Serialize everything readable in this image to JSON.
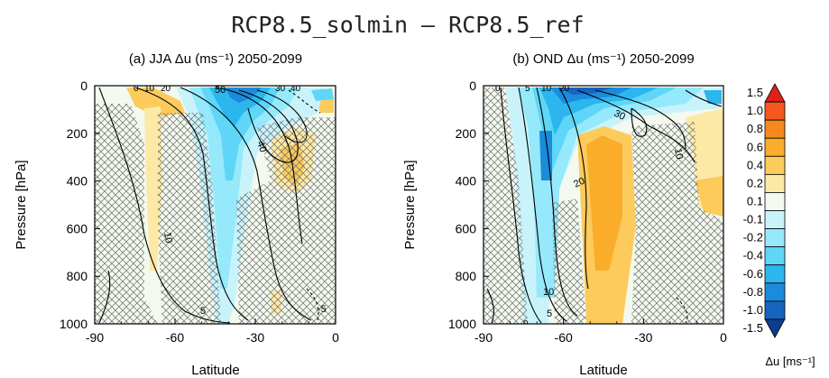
{
  "figure_title": "RCP8.5_solmin – RCP8.5_ref",
  "chart_data": [
    {
      "type": "heatmap",
      "panel_title": "(a) JJA Δu (ms⁻¹) 2050-2099",
      "xlabel": "Latitude",
      "ylabel": "Pressure [hPa]",
      "xlim": [
        -90,
        0
      ],
      "ylim": [
        1000,
        0
      ],
      "x_ticks": [
        "-90",
        "-60",
        "-30",
        "0"
      ],
      "y_ticks": [
        "0",
        "200",
        "400",
        "600",
        "800",
        "1000"
      ],
      "contour_labels": [
        "0",
        "10",
        "20",
        "30",
        "40",
        "50",
        "40",
        "10",
        "5",
        "-5"
      ]
    },
    {
      "type": "heatmap",
      "panel_title": "(b) OND Δu (ms⁻¹) 2050-2099",
      "xlabel": "Latitude",
      "ylabel": "Pressure [hPa]",
      "xlim": [
        -90,
        0
      ],
      "ylim": [
        1000,
        0
      ],
      "x_ticks": [
        "-90",
        "-60",
        "-30",
        "0"
      ],
      "y_ticks": [
        "0",
        "200",
        "400",
        "600",
        "800",
        "1000"
      ],
      "contour_labels": [
        "0",
        "5",
        "10",
        "20",
        "30",
        "20",
        "10",
        "10",
        "5",
        "0"
      ]
    }
  ],
  "colorbar": {
    "levels": [
      "1.5",
      "1.0",
      "0.8",
      "0.6",
      "0.4",
      "0.2",
      "0.1",
      "-0.1",
      "-0.2",
      "-0.4",
      "-0.6",
      "-0.8",
      "-1.0",
      "-1.5"
    ],
    "colors": [
      "#e0201b",
      "#f4581f",
      "#f7891c",
      "#f9ad2b",
      "#fccb5c",
      "#fde9a6",
      "#f3f9ee",
      "#c9f3fb",
      "#95e9fb",
      "#5fd6f7",
      "#2cb6ee",
      "#1b8bdb",
      "#1763c0",
      "#0f3d8e"
    ],
    "label": "Δu [ms⁻¹]"
  }
}
